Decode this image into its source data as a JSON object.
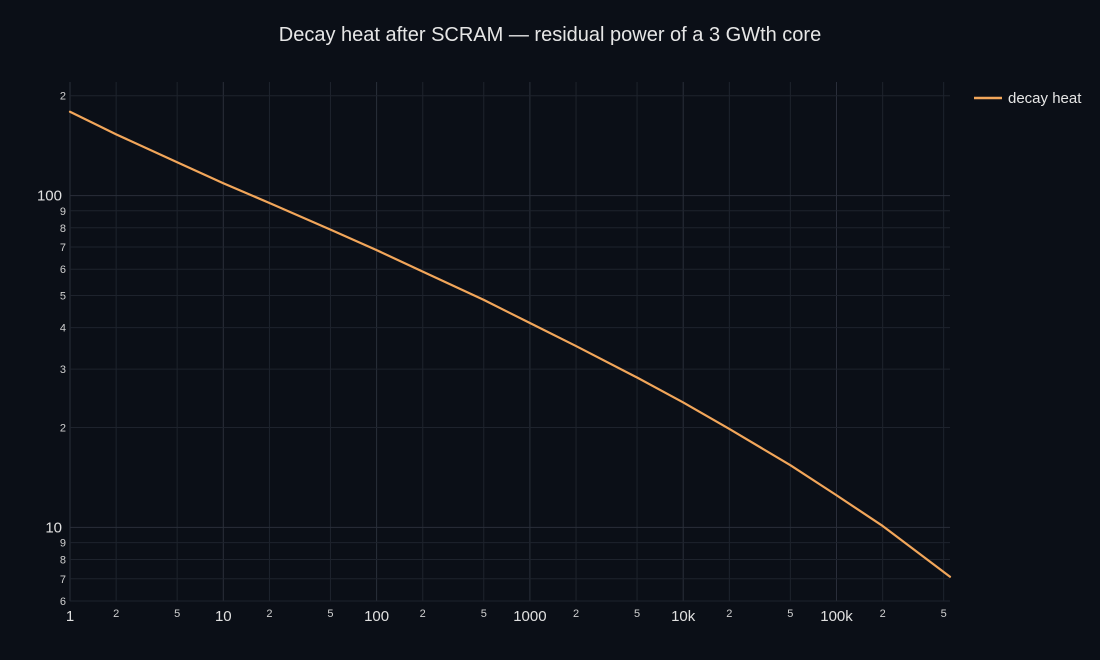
{
  "chart_data": {
    "type": "line",
    "title": "Decay heat after SCRAM — residual power of a 3 GWth core",
    "xlabel": "",
    "ylabel": "",
    "x_scale": "log",
    "y_scale": "log",
    "xlim": [
      1,
      550000
    ],
    "ylim": [
      6,
      220
    ],
    "grid": true,
    "legend_position": "top-right",
    "x_ticks": {
      "major": [
        {
          "value": 1,
          "label": "1"
        },
        {
          "value": 10,
          "label": "10"
        },
        {
          "value": 100,
          "label": "100"
        },
        {
          "value": 1000,
          "label": "1000"
        },
        {
          "value": 10000,
          "label": "10k"
        },
        {
          "value": 100000,
          "label": "100k"
        }
      ],
      "minor": [
        {
          "value": 2,
          "label": "2"
        },
        {
          "value": 5,
          "label": "5"
        },
        {
          "value": 20,
          "label": "2"
        },
        {
          "value": 50,
          "label": "5"
        },
        {
          "value": 200,
          "label": "2"
        },
        {
          "value": 500,
          "label": "5"
        },
        {
          "value": 2000,
          "label": "2"
        },
        {
          "value": 5000,
          "label": "5"
        },
        {
          "value": 20000,
          "label": "2"
        },
        {
          "value": 50000,
          "label": "5"
        },
        {
          "value": 200000,
          "label": "2"
        },
        {
          "value": 500000,
          "label": "5"
        }
      ]
    },
    "y_ticks": {
      "major": [
        {
          "value": 10,
          "label": "10"
        },
        {
          "value": 100,
          "label": "100"
        }
      ],
      "minor": [
        {
          "value": 6,
          "label": "6"
        },
        {
          "value": 7,
          "label": "7"
        },
        {
          "value": 8,
          "label": "8"
        },
        {
          "value": 9,
          "label": "9"
        },
        {
          "value": 20,
          "label": "2"
        },
        {
          "value": 30,
          "label": "3"
        },
        {
          "value": 40,
          "label": "4"
        },
        {
          "value": 50,
          "label": "5"
        },
        {
          "value": 60,
          "label": "6"
        },
        {
          "value": 70,
          "label": "7"
        },
        {
          "value": 80,
          "label": "8"
        },
        {
          "value": 90,
          "label": "9"
        },
        {
          "value": 200,
          "label": "2"
        }
      ]
    },
    "series": [
      {
        "name": "decay heat",
        "color": "#f2a65a",
        "x": [
          1,
          2,
          5,
          10,
          20,
          50,
          100,
          200,
          500,
          1000,
          2000,
          5000,
          10000,
          20000,
          50000,
          100000,
          200000,
          550000
        ],
        "y": [
          179,
          153,
          126,
          109,
          95,
          79,
          68.5,
          59,
          48.5,
          41.3,
          35.2,
          28.3,
          23.8,
          19.8,
          15.4,
          12.5,
          10.1,
          7.1
        ]
      }
    ]
  }
}
